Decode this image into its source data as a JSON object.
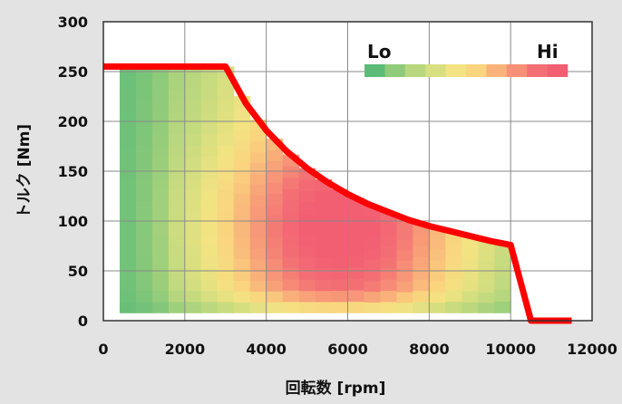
{
  "chart_data": {
    "type": "heatmap",
    "xlabel": "回転数 [rpm]",
    "ylabel": "トルク [Nm]",
    "xlim": [
      0,
      12000
    ],
    "ylim": [
      0,
      300
    ],
    "x_ticks": [
      "0",
      "2000",
      "4000",
      "6000",
      "8000",
      "10000",
      "12000"
    ],
    "y_ticks": [
      "0",
      "50",
      "100",
      "150",
      "200",
      "250",
      "300"
    ],
    "grid": true,
    "legend": {
      "placement": "top-right",
      "low_label": "Lo",
      "high_label": "Hi",
      "colors": [
        "#5dbb78",
        "#8fcb7a",
        "#b8d77e",
        "#d8df80",
        "#f3e382",
        "#fad47e",
        "#f9b27a",
        "#f79077",
        "#f36f74",
        "#f25f73"
      ]
    },
    "torque_curve": {
      "color": "#ff0000",
      "x": [
        0,
        3000,
        3500,
        4000,
        4500,
        5000,
        5500,
        6000,
        6500,
        7000,
        7500,
        8000,
        8500,
        9000,
        9500,
        10000,
        10500,
        11000,
        11500
      ],
      "y": [
        255,
        255,
        218,
        191,
        170,
        153,
        139,
        127,
        117,
        109,
        101,
        95,
        90,
        85,
        80,
        76,
        0,
        0,
        0
      ]
    },
    "efficiency_map": {
      "x_range": [
        400,
        10000
      ],
      "y_range": [
        8,
        255
      ],
      "peak_x": 5800,
      "peak_y": 95,
      "note": "efficiency scale 0 (Lo) to 1 (Hi), bounded by torque curve"
    }
  }
}
